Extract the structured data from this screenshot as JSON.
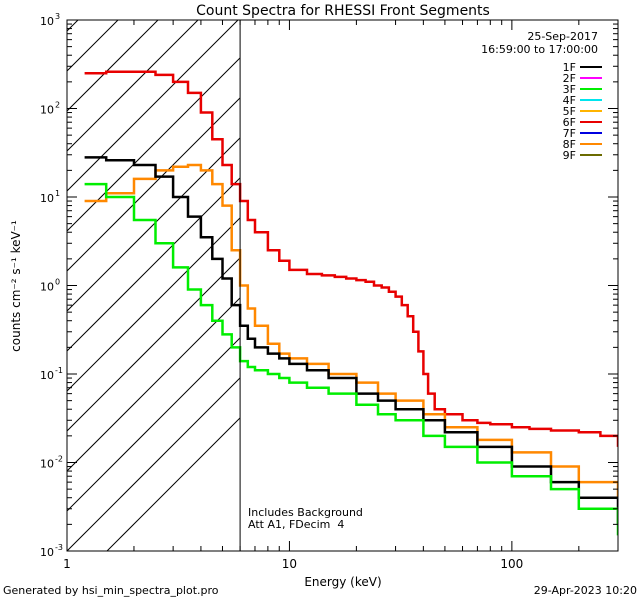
{
  "chart_data": {
    "type": "line",
    "title": "Count Spectra for RHESSI Front Segments",
    "xlabel": "Energy (keV)",
    "ylabel": "counts cm⁻² s⁻¹ keV⁻¹",
    "xscale": "log",
    "yscale": "log",
    "xlim": [
      1,
      300
    ],
    "ylim": [
      0.001,
      1000
    ],
    "x_tick_labels": [
      {
        "value": 1,
        "label": "1"
      },
      {
        "value": 10,
        "label": "10"
      },
      {
        "value": 100,
        "label": "100"
      }
    ],
    "y_tick_labels": [
      {
        "value": 1000,
        "mant": "10",
        "exp": "3"
      },
      {
        "value": 100,
        "mant": "10",
        "exp": "2"
      },
      {
        "value": 10,
        "mant": "10",
        "exp": "1"
      },
      {
        "value": 1,
        "mant": "10",
        "exp": "0"
      },
      {
        "value": 0.1,
        "mant": "10",
        "exp": "-1"
      },
      {
        "value": 0.01,
        "mant": "10",
        "exp": "-2"
      },
      {
        "value": 0.001,
        "mant": "10",
        "exp": "-3"
      }
    ],
    "date": "25-Sep-2017",
    "time_range": "16:59:00 to 17:00:00",
    "annotations": [
      "Includes Background",
      "Att A1, FDecim  4"
    ],
    "shaded_region_max_energy": 6,
    "legend_position": "top-right",
    "legend": [
      {
        "name": "1F",
        "color": "#000000"
      },
      {
        "name": "2F",
        "color": "#ff00ff"
      },
      {
        "name": "3F",
        "color": "#00ee00"
      },
      {
        "name": "4F",
        "color": "#00e5ee"
      },
      {
        "name": "5F",
        "color": "#ffb400"
      },
      {
        "name": "6F",
        "color": "#e80000"
      },
      {
        "name": "7F",
        "color": "#0000e0"
      },
      {
        "name": "8F",
        "color": "#ff8800"
      },
      {
        "name": "9F",
        "color": "#6b6b00"
      }
    ],
    "series": [
      {
        "name": "6F",
        "color": "#e80000",
        "x": [
          1.2,
          1.5,
          2,
          2.5,
          3,
          3.5,
          4,
          4.5,
          5,
          5.5,
          6,
          6.5,
          7,
          8,
          9,
          10,
          12,
          14,
          16,
          18,
          20,
          22,
          24,
          26,
          28,
          30,
          32,
          34,
          36,
          38,
          40,
          42,
          45,
          50,
          60,
          70,
          80,
          100,
          120,
          150,
          200,
          250,
          300
        ],
        "y": [
          250,
          260,
          260,
          240,
          200,
          150,
          90,
          45,
          23,
          14,
          9,
          5.5,
          4,
          2.5,
          1.9,
          1.5,
          1.35,
          1.3,
          1.25,
          1.2,
          1.15,
          1.1,
          1.0,
          0.95,
          0.85,
          0.75,
          0.6,
          0.45,
          0.3,
          0.18,
          0.1,
          0.06,
          0.04,
          0.035,
          0.03,
          0.028,
          0.027,
          0.025,
          0.024,
          0.023,
          0.022,
          0.02,
          0.015
        ]
      },
      {
        "name": "8F",
        "color": "#ff8800",
        "x": [
          1.2,
          1.5,
          2,
          2.5,
          3,
          3.5,
          4,
          4.5,
          5,
          5.5,
          6,
          6.5,
          7,
          8,
          9,
          10,
          12,
          15,
          20,
          25,
          30,
          40,
          50,
          70,
          100,
          150,
          200,
          300
        ],
        "y": [
          9,
          11,
          16,
          20,
          22,
          23,
          20,
          14,
          8,
          2.5,
          1.0,
          0.55,
          0.35,
          0.22,
          0.17,
          0.15,
          0.13,
          0.1,
          0.08,
          0.06,
          0.05,
          0.035,
          0.025,
          0.018,
          0.013,
          0.009,
          0.006,
          0.004
        ]
      },
      {
        "name": "1F",
        "color": "#000000",
        "x": [
          1.2,
          1.5,
          2,
          2.5,
          3,
          3.5,
          4,
          4.5,
          5,
          5.5,
          6,
          6.5,
          7,
          8,
          9,
          10,
          12,
          15,
          20,
          25,
          30,
          40,
          50,
          70,
          100,
          150,
          200,
          300
        ],
        "y": [
          28,
          26,
          23,
          17,
          10,
          6,
          3.5,
          2,
          1.2,
          0.6,
          0.35,
          0.25,
          0.2,
          0.17,
          0.15,
          0.13,
          0.11,
          0.09,
          0.06,
          0.05,
          0.04,
          0.03,
          0.022,
          0.015,
          0.009,
          0.006,
          0.004,
          0.002
        ]
      },
      {
        "name": "3F",
        "color": "#00ee00",
        "x": [
          1.2,
          1.5,
          2,
          2.5,
          3,
          3.5,
          4,
          4.5,
          5,
          5.5,
          6,
          6.5,
          7,
          8,
          9,
          10,
          12,
          15,
          20,
          25,
          30,
          40,
          50,
          70,
          100,
          150,
          200,
          300
        ],
        "y": [
          14,
          10,
          5.5,
          3,
          1.6,
          0.9,
          0.6,
          0.4,
          0.28,
          0.2,
          0.14,
          0.12,
          0.11,
          0.1,
          0.09,
          0.08,
          0.07,
          0.06,
          0.045,
          0.035,
          0.03,
          0.02,
          0.015,
          0.01,
          0.007,
          0.005,
          0.003,
          0.0015
        ]
      }
    ]
  },
  "footer": {
    "generated_by": "Generated by hsi_min_spectra_plot.pro",
    "timestamp": "29-Apr-2023 10:20"
  }
}
